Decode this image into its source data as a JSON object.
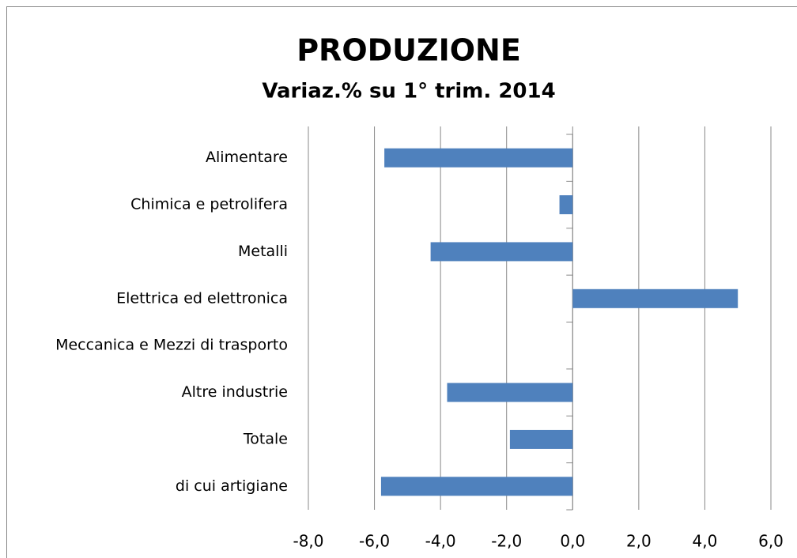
{
  "chart_data": {
    "type": "barh",
    "title": "PRODUZIONE",
    "subtitle": "Variaz.% su 1° trim. 2014",
    "categories": [
      "Alimentare",
      "Chimica e petrolifera",
      "Metalli",
      "Elettrica ed elettronica",
      "Meccanica e Mezzi di trasporto",
      "Altre industrie",
      "Totale",
      "di cui artigiane"
    ],
    "values": [
      -5.7,
      -0.4,
      -4.3,
      5.0,
      0,
      -3.8,
      -1.9,
      -5.8
    ],
    "color": "#4f81bd",
    "xlim": [
      -8,
      6
    ],
    "xticks": [
      {
        "value": -8,
        "label": "-8,0"
      },
      {
        "value": -6,
        "label": "-6,0"
      },
      {
        "value": -4,
        "label": "-4,0"
      },
      {
        "value": -2,
        "label": "-2,0"
      },
      {
        "value": 0,
        "label": "0,0"
      },
      {
        "value": 2,
        "label": "2,0"
      },
      {
        "value": 4,
        "label": "4,0"
      },
      {
        "value": 6,
        "label": "6,0"
      }
    ],
    "grid": true
  }
}
